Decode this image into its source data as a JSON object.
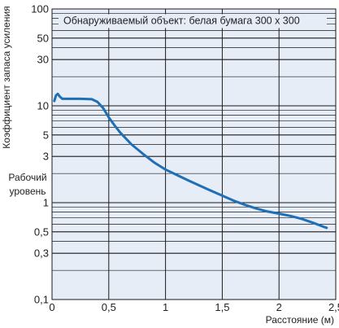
{
  "chart_data": {
    "type": "line",
    "title": "",
    "annotation": "Обнаруживаемый объект: белая бумага 300 x 300",
    "xlabel": "Расстояние (м)",
    "ylabel": "Коэффициент запаса усиления",
    "side_label_line1": "Рабочий",
    "side_label_line2": "уровень",
    "x_scale": "linear",
    "y_scale": "log",
    "xlim": [
      0,
      2.5
    ],
    "ylim": [
      0.1,
      100
    ],
    "grid": true,
    "x_ticks": [
      {
        "value": 0,
        "label": "0"
      },
      {
        "value": 0.5,
        "label": "0,5"
      },
      {
        "value": 1,
        "label": "1"
      },
      {
        "value": 1.5,
        "label": "1,5"
      },
      {
        "value": 2,
        "label": "2"
      },
      {
        "value": 2.5,
        "label": "2,5"
      }
    ],
    "y_ticks": [
      {
        "value": 0.1,
        "label": "0,1"
      },
      {
        "value": 0.3,
        "label": "0,3"
      },
      {
        "value": 0.5,
        "label": "0,5"
      },
      {
        "value": 1,
        "label": "1"
      },
      {
        "value": 3,
        "label": "3"
      },
      {
        "value": 5,
        "label": "5"
      },
      {
        "value": 10,
        "label": "10"
      },
      {
        "value": 30,
        "label": "30"
      },
      {
        "value": 50,
        "label": "50"
      },
      {
        "value": 100,
        "label": "100"
      }
    ],
    "y_minor_grid": [
      0.2,
      0.4,
      0.6,
      0.7,
      0.8,
      0.9,
      2,
      4,
      6,
      7,
      8,
      9,
      20,
      40,
      60,
      70,
      80,
      90
    ],
    "series": [
      {
        "color": "#1e6fb5",
        "points": [
          [
            0.02,
            11.2
          ],
          [
            0.035,
            12.8
          ],
          [
            0.05,
            13.3
          ],
          [
            0.07,
            12.4
          ],
          [
            0.09,
            11.8
          ],
          [
            0.15,
            11.8
          ],
          [
            0.25,
            11.8
          ],
          [
            0.35,
            11.7
          ],
          [
            0.4,
            11.0
          ],
          [
            0.45,
            9.5
          ],
          [
            0.5,
            7.6
          ],
          [
            0.55,
            6.3
          ],
          [
            0.6,
            5.3
          ],
          [
            0.7,
            4.0
          ],
          [
            0.8,
            3.2
          ],
          [
            0.9,
            2.6
          ],
          [
            1.0,
            2.2
          ],
          [
            1.1,
            1.93
          ],
          [
            1.2,
            1.7
          ],
          [
            1.3,
            1.5
          ],
          [
            1.4,
            1.33
          ],
          [
            1.5,
            1.18
          ],
          [
            1.6,
            1.05
          ],
          [
            1.7,
            0.95
          ],
          [
            1.8,
            0.87
          ],
          [
            1.9,
            0.81
          ],
          [
            2.0,
            0.77
          ],
          [
            2.1,
            0.73
          ],
          [
            2.2,
            0.68
          ],
          [
            2.3,
            0.62
          ],
          [
            2.4,
            0.56
          ],
          [
            2.42,
            0.55
          ]
        ]
      }
    ]
  },
  "colors": {
    "plot_background": "#e7edf7",
    "grid": "#1a1a1a",
    "curve": "#1e6fb5"
  }
}
